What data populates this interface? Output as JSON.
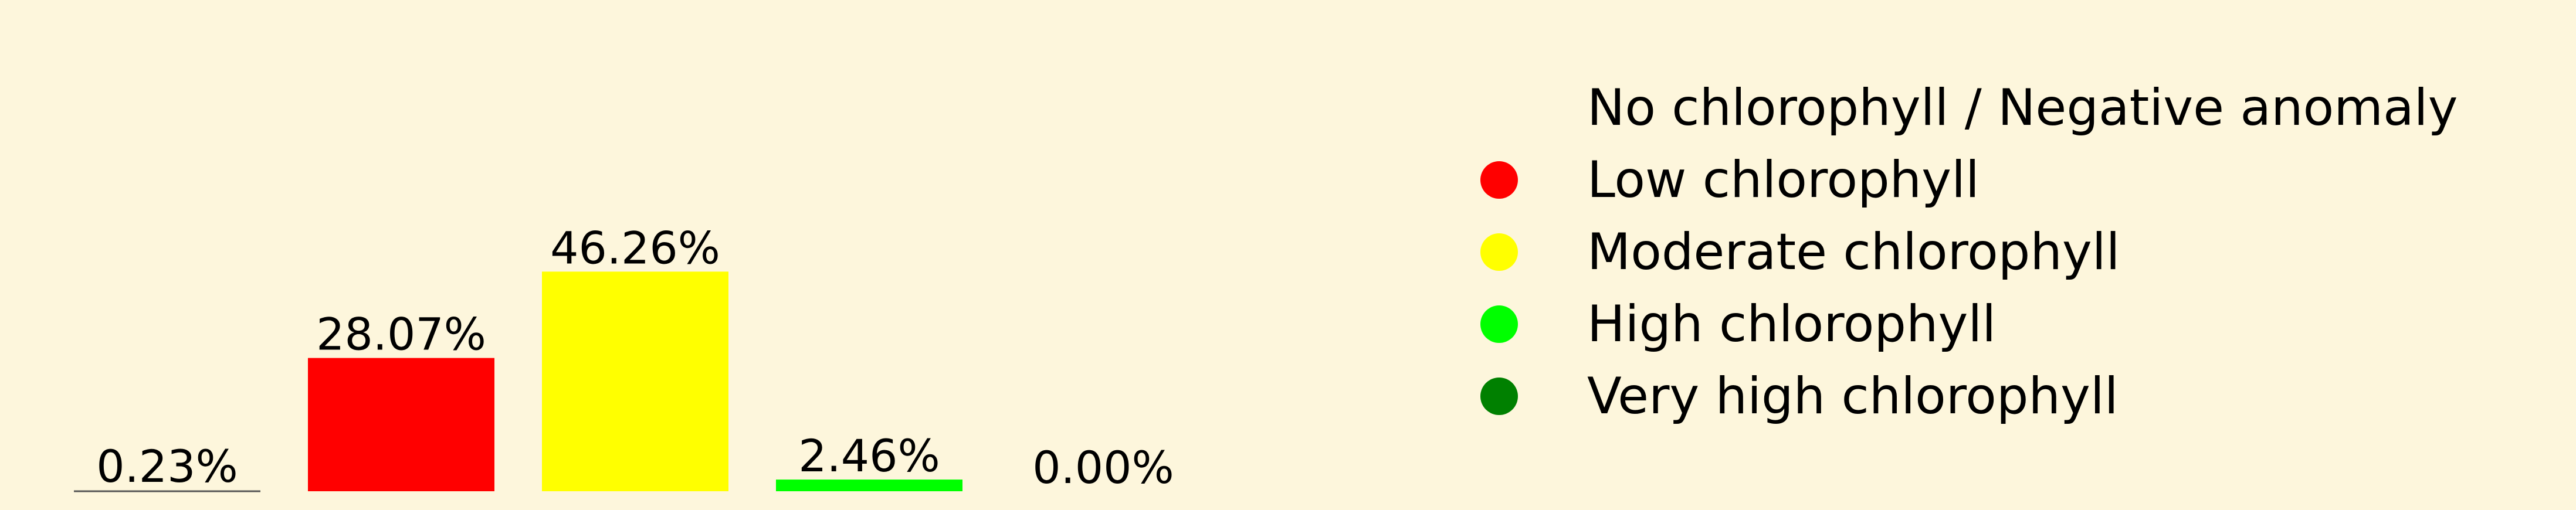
{
  "chart_data": {
    "type": "bar",
    "categories": [
      "No chlorophyll / Negative anomaly",
      "Low chlorophyll",
      "Moderate chlorophyll",
      "High chlorophyll",
      "Very high chlorophyll"
    ],
    "values": [
      0.23,
      28.07,
      46.26,
      2.46,
      0.0
    ],
    "value_labels": [
      "0.23%",
      "28.07%",
      "46.26%",
      "2.46%",
      "0.00%"
    ],
    "colors": [
      "#fdf6dc",
      "#ff0000",
      "#ffff00",
      "#00ff00",
      "#008000"
    ],
    "ylim": [
      0,
      100
    ],
    "grid": false,
    "legend_placement": "right",
    "axes_visible": false
  },
  "colors": {
    "background": "#fdf6dc",
    "baseline": "#555555"
  }
}
